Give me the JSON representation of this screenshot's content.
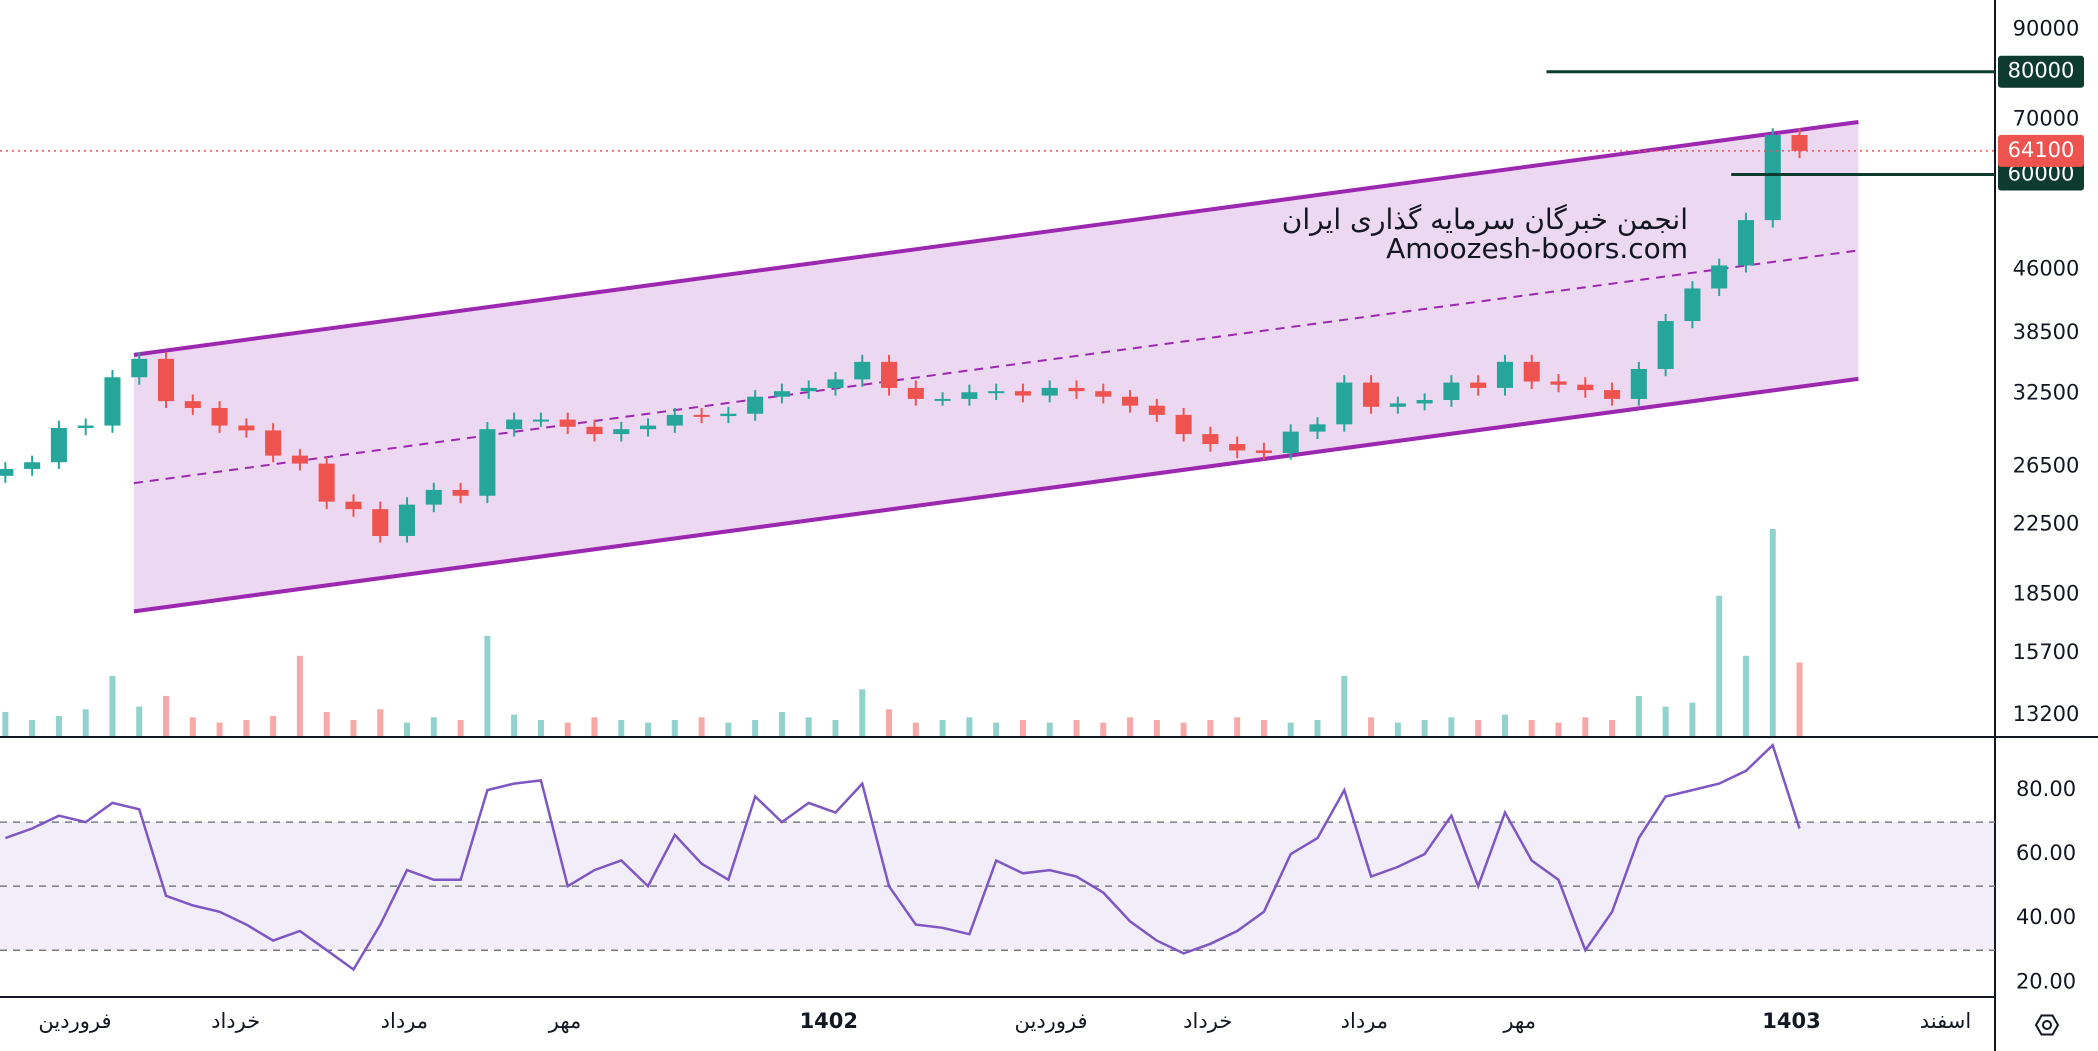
{
  "chart_data": [
    {
      "type": "candlestick",
      "log": true,
      "up_color": "#26a69a",
      "down_color": "#ef5350",
      "xlim": [
        -0.2,
        74.3
      ],
      "ylim": [
        12450,
        97800
      ],
      "yticks": [
        13200,
        15700,
        18500,
        22500,
        26500,
        32500,
        38500,
        46000,
        70000,
        90000
      ],
      "open": [
        25800,
        26300,
        26800,
        29500,
        29700,
        34000,
        35800,
        31800,
        31200,
        29700,
        29300,
        27300,
        26700,
        24000,
        23500,
        21800,
        23800,
        24800,
        24400,
        29400,
        30200,
        30200,
        29600,
        29000,
        29400,
        29700,
        30600,
        30500,
        30700,
        32200,
        32700,
        33000,
        33800,
        35500,
        33000,
        32000,
        32000,
        32600,
        32700,
        32300,
        33000,
        32700,
        32200,
        31400,
        30600,
        29000,
        28200,
        27700,
        27500,
        29200,
        29800,
        33500,
        31300,
        31600,
        31900,
        33500,
        33000,
        35500,
        33600,
        33300,
        32800,
        32000,
        34800,
        39800,
        43600,
        46500,
        52800,
        67000
      ],
      "high": [
        26800,
        27300,
        30100,
        30300,
        34700,
        36500,
        36500,
        32400,
        31800,
        30300,
        29900,
        27800,
        27200,
        24500,
        24000,
        24300,
        25300,
        25300,
        30000,
        30800,
        30800,
        30800,
        30200,
        30000,
        30300,
        31200,
        31200,
        31300,
        32800,
        33400,
        33700,
        34500,
        36200,
        36200,
        33700,
        32600,
        33300,
        33400,
        33400,
        33700,
        33700,
        33400,
        32800,
        32000,
        31200,
        29600,
        28800,
        28300,
        29800,
        30400,
        34200,
        34200,
        32200,
        32500,
        34200,
        34200,
        36200,
        36200,
        34300,
        34000,
        33500,
        35500,
        40600,
        44500,
        47400,
        53900,
        68300,
        68300
      ],
      "low": [
        25300,
        25800,
        26300,
        28900,
        29100,
        33300,
        31200,
        30600,
        29100,
        28700,
        26800,
        26200,
        23500,
        23000,
        21400,
        21400,
        23300,
        23900,
        23900,
        28800,
        29600,
        29000,
        28400,
        28400,
        28800,
        29100,
        29900,
        29900,
        30100,
        31600,
        32000,
        32300,
        33100,
        32300,
        31400,
        31400,
        31400,
        31900,
        31700,
        31700,
        32000,
        31600,
        30800,
        30000,
        28400,
        27600,
        27100,
        27000,
        27000,
        28600,
        29200,
        30700,
        30700,
        31000,
        31300,
        32300,
        32300,
        32900,
        32600,
        32100,
        31400,
        31400,
        34100,
        39000,
        42700,
        45600,
        51700,
        62800
      ],
      "close": [
        26300,
        26800,
        29500,
        29700,
        34000,
        35800,
        31800,
        31200,
        29700,
        29300,
        27300,
        26700,
        24000,
        23500,
        21800,
        23800,
        24800,
        24400,
        29400,
        30200,
        30200,
        29600,
        29000,
        29400,
        29700,
        30600,
        30500,
        30700,
        32200,
        32700,
        33000,
        33800,
        35500,
        33000,
        32000,
        32000,
        32600,
        32700,
        32300,
        33000,
        32700,
        32200,
        31400,
        30600,
        29000,
        28200,
        27700,
        27500,
        29200,
        29800,
        33500,
        31300,
        31600,
        31900,
        33500,
        33000,
        35500,
        33600,
        33300,
        32800,
        32000,
        34800,
        39800,
        43600,
        46500,
        52800,
        67000,
        64100
      ],
      "volume": [
        18,
        12,
        15,
        20,
        45,
        22,
        30,
        14,
        10,
        12,
        15,
        60,
        18,
        12,
        20,
        10,
        14,
        12,
        75,
        16,
        12,
        10,
        14,
        12,
        10,
        12,
        14,
        10,
        12,
        18,
        14,
        12,
        35,
        20,
        10,
        12,
        14,
        10,
        12,
        10,
        12,
        10,
        14,
        12,
        10,
        12,
        14,
        12,
        10,
        12,
        45,
        14,
        10,
        12,
        14,
        12,
        16,
        12,
        10,
        14,
        12,
        30,
        22,
        25,
        105,
        60,
        155,
        55
      ],
      "channel": {
        "upper": {
          "x": [
            4.8,
            69.2
          ],
          "y": [
            36200,
            69500
          ]
        },
        "lower": {
          "x": [
            4.8,
            69.2
          ],
          "y": [
            17650,
            33850
          ]
        },
        "color": "#9c27b0"
      },
      "levels": [
        {
          "value": 80000,
          "start": 57.55
        },
        {
          "value": 60000,
          "start": 64.45
        }
      ],
      "level_color": "#0d3b2e",
      "last_price": 64100,
      "annotations": [
        "انجمن خبرگان سرمایه گذاری ایران",
        "Amoozesh-boors.com"
      ]
    },
    {
      "type": "line",
      "color": "#7e57c2",
      "xlim": [
        -0.2,
        74.3
      ],
      "ylim": [
        15.4,
        96.25
      ],
      "yticks": [
        {
          "value": 80,
          "label": "80.00"
        },
        {
          "value": 60,
          "label": "60.00"
        },
        {
          "value": 40,
          "label": "40.00"
        },
        {
          "value": 20,
          "label": "20.00"
        }
      ],
      "hlines": [
        70,
        50,
        30
      ],
      "band": [
        30,
        70
      ],
      "values": [
        65,
        68,
        72,
        70,
        76,
        74,
        47,
        44,
        42,
        38,
        33,
        36,
        30,
        24,
        38,
        55,
        52,
        52,
        80,
        82,
        83,
        50,
        55,
        58,
        50,
        66,
        57,
        52,
        78,
        70,
        76,
        73,
        82,
        50,
        38,
        37,
        35,
        58,
        54,
        55,
        53,
        48,
        39,
        33,
        29,
        32,
        36,
        42,
        60,
        65,
        80,
        53,
        56,
        60,
        72,
        50,
        73,
        58,
        52,
        30,
        42,
        65,
        78,
        80,
        82,
        86,
        94,
        68
      ],
      "xticks": [
        {
          "value": 2.6,
          "label": "فروردین"
        },
        {
          "value": 8.6,
          "label": "خرداد"
        },
        {
          "value": 14.9,
          "label": "مرداد"
        },
        {
          "value": 20.9,
          "label": "مهر"
        },
        {
          "value": 30.75,
          "label": "1402"
        },
        {
          "value": 39.05,
          "label": "فروردین"
        },
        {
          "value": 44.9,
          "label": "خرداد"
        },
        {
          "value": 50.75,
          "label": "مرداد"
        },
        {
          "value": 56.55,
          "label": "مهر"
        },
        {
          "value": 66.7,
          "label": "1403"
        },
        {
          "value": 72.45,
          "label": "اسفند"
        }
      ]
    }
  ]
}
